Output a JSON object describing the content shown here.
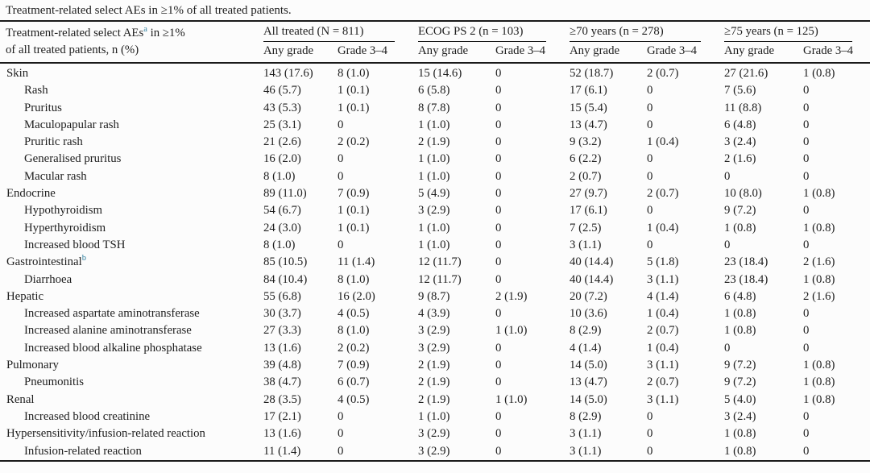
{
  "caption": "Treatment-related select AEs in ≥1% of all treated patients.",
  "header": {
    "stub_line1_pre": "Treatment-related select AEs",
    "stub_sup": "a",
    "stub_line1_post": " in ≥1%",
    "stub_line2": "of all treated patients, n (%)",
    "groups": [
      {
        "label": "All treated (N = 811)"
      },
      {
        "label": "ECOG PS 2 (n = 103)"
      },
      {
        "label": "≥70 years (n = 278)"
      },
      {
        "label": "≥75 years (n = 125)"
      }
    ],
    "sub": [
      "Any grade",
      "Grade 3–4"
    ]
  },
  "footnote_color": "#2e7f9f",
  "rows": [
    {
      "label": "Skin",
      "indent": 0,
      "values": [
        "143 (17.6)",
        "8 (1.0)",
        "15 (14.6)",
        "0",
        "52 (18.7)",
        "2 (0.7)",
        "27 (21.6)",
        "1 (0.8)"
      ]
    },
    {
      "label": "Rash",
      "indent": 1,
      "values": [
        "46 (5.7)",
        "1 (0.1)",
        "6 (5.8)",
        "0",
        "17 (6.1)",
        "0",
        "7 (5.6)",
        "0"
      ]
    },
    {
      "label": "Pruritus",
      "indent": 1,
      "values": [
        "43 (5.3)",
        "1 (0.1)",
        "8 (7.8)",
        "0",
        "15 (5.4)",
        "0",
        "11 (8.8)",
        "0"
      ]
    },
    {
      "label": "Maculopapular rash",
      "indent": 1,
      "values": [
        "25 (3.1)",
        "0",
        "1 (1.0)",
        "0",
        "13 (4.7)",
        "0",
        "6 (4.8)",
        "0"
      ]
    },
    {
      "label": "Pruritic rash",
      "indent": 1,
      "values": [
        "21 (2.6)",
        "2 (0.2)",
        "2 (1.9)",
        "0",
        "9 (3.2)",
        "1 (0.4)",
        "3 (2.4)",
        "0"
      ]
    },
    {
      "label": "Generalised pruritus",
      "indent": 1,
      "values": [
        "16 (2.0)",
        "0",
        "1 (1.0)",
        "0",
        "6 (2.2)",
        "0",
        "2 (1.6)",
        "0"
      ]
    },
    {
      "label": "Macular rash",
      "indent": 1,
      "values": [
        "8 (1.0)",
        "0",
        "1 (1.0)",
        "0",
        "2 (0.7)",
        "0",
        "0",
        "0"
      ]
    },
    {
      "label": "Endocrine",
      "indent": 0,
      "values": [
        "89 (11.0)",
        "7 (0.9)",
        "5 (4.9)",
        "0",
        "27 (9.7)",
        "2 (0.7)",
        "10 (8.0)",
        "1 (0.8)"
      ]
    },
    {
      "label": "Hypothyroidism",
      "indent": 1,
      "values": [
        "54 (6.7)",
        "1 (0.1)",
        "3 (2.9)",
        "0",
        "17 (6.1)",
        "0",
        "9 (7.2)",
        "0"
      ]
    },
    {
      "label": "Hyperthyroidism",
      "indent": 1,
      "values": [
        "24 (3.0)",
        "1 (0.1)",
        "1 (1.0)",
        "0",
        "7 (2.5)",
        "1 (0.4)",
        "1 (0.8)",
        "1 (0.8)"
      ]
    },
    {
      "label": "Increased blood TSH",
      "indent": 1,
      "values": [
        "8 (1.0)",
        "0",
        "1 (1.0)",
        "0",
        "3 (1.1)",
        "0",
        "0",
        "0"
      ]
    },
    {
      "label": "Gastrointestinal",
      "sup": "b",
      "indent": 0,
      "values": [
        "85 (10.5)",
        "11 (1.4)",
        "12 (11.7)",
        "0",
        "40 (14.4)",
        "5 (1.8)",
        "23 (18.4)",
        "2 (1.6)"
      ]
    },
    {
      "label": "Diarrhoea",
      "indent": 1,
      "values": [
        "84 (10.4)",
        "8 (1.0)",
        "12 (11.7)",
        "0",
        "40 (14.4)",
        "3 (1.1)",
        "23 (18.4)",
        "1 (0.8)"
      ]
    },
    {
      "label": "Hepatic",
      "indent": 0,
      "values": [
        "55 (6.8)",
        "16 (2.0)",
        "9 (8.7)",
        "2 (1.9)",
        "20 (7.2)",
        "4 (1.4)",
        "6 (4.8)",
        "2 (1.6)"
      ]
    },
    {
      "label": "Increased aspartate aminotransferase",
      "indent": 1,
      "values": [
        "30 (3.7)",
        "4 (0.5)",
        "4 (3.9)",
        "0",
        "10 (3.6)",
        "1 (0.4)",
        "1 (0.8)",
        "0"
      ]
    },
    {
      "label": "Increased alanine aminotransferase",
      "indent": 1,
      "values": [
        "27 (3.3)",
        "8 (1.0)",
        "3 (2.9)",
        "1 (1.0)",
        "8 (2.9)",
        "2 (0.7)",
        "1 (0.8)",
        "0"
      ]
    },
    {
      "label": "Increased blood alkaline phosphatase",
      "indent": 1,
      "values": [
        "13 (1.6)",
        "2 (0.2)",
        "3 (2.9)",
        "0",
        "4 (1.4)",
        "1 (0.4)",
        "0",
        "0"
      ]
    },
    {
      "label": "Pulmonary",
      "indent": 0,
      "values": [
        "39 (4.8)",
        "7 (0.9)",
        "2 (1.9)",
        "0",
        "14 (5.0)",
        "3 (1.1)",
        "9 (7.2)",
        "1 (0.8)"
      ]
    },
    {
      "label": "Pneumonitis",
      "indent": 1,
      "values": [
        "38 (4.7)",
        "6 (0.7)",
        "2 (1.9)",
        "0",
        "13 (4.7)",
        "2 (0.7)",
        "9 (7.2)",
        "1 (0.8)"
      ]
    },
    {
      "label": "Renal",
      "indent": 0,
      "values": [
        "28 (3.5)",
        "4 (0.5)",
        "2 (1.9)",
        "1 (1.0)",
        "14 (5.0)",
        "3 (1.1)",
        "5 (4.0)",
        "1 (0.8)"
      ]
    },
    {
      "label": "Increased blood creatinine",
      "indent": 1,
      "values": [
        "17 (2.1)",
        "0",
        "1 (1.0)",
        "0",
        "8 (2.9)",
        "0",
        "3 (2.4)",
        "0"
      ]
    },
    {
      "label": "Hypersensitivity/infusion-related reaction",
      "indent": 0,
      "values": [
        "13 (1.6)",
        "0",
        "3 (2.9)",
        "0",
        "3 (1.1)",
        "0",
        "1 (0.8)",
        "0"
      ]
    },
    {
      "label": "Infusion-related reaction",
      "indent": 1,
      "values": [
        "11 (1.4)",
        "0",
        "3 (2.9)",
        "0",
        "3 (1.1)",
        "0",
        "1 (0.8)",
        "0"
      ]
    }
  ]
}
